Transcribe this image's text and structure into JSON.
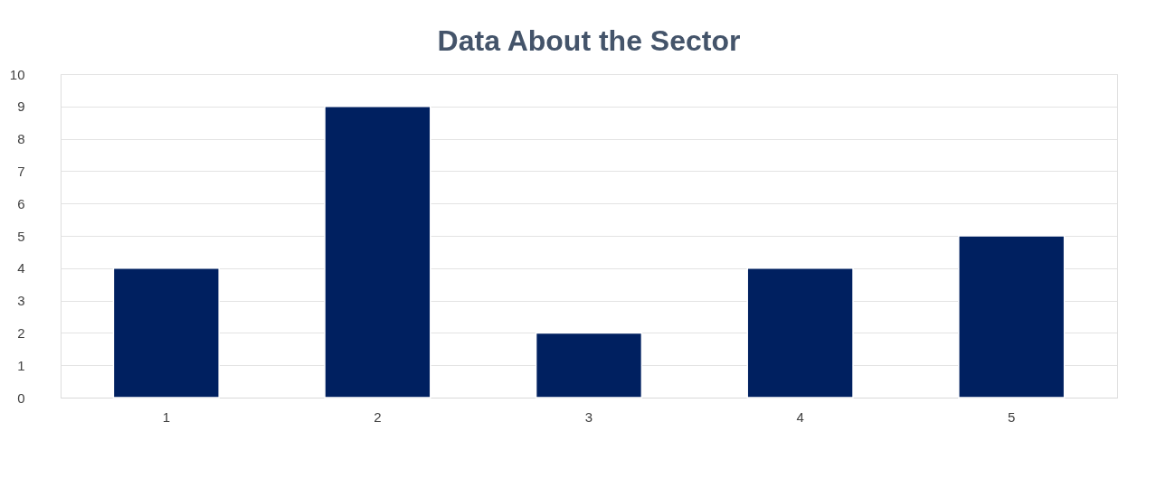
{
  "chart_data": {
    "type": "bar",
    "title": "Data About the Sector",
    "categories": [
      "1",
      "2",
      "3",
      "4",
      "5"
    ],
    "values": [
      4,
      9,
      2,
      4,
      5
    ],
    "color": "#002060",
    "ylim": [
      0,
      10
    ],
    "yticks": [
      0,
      1,
      2,
      3,
      4,
      5,
      6,
      7,
      8,
      9,
      10
    ],
    "grid": "y"
  }
}
